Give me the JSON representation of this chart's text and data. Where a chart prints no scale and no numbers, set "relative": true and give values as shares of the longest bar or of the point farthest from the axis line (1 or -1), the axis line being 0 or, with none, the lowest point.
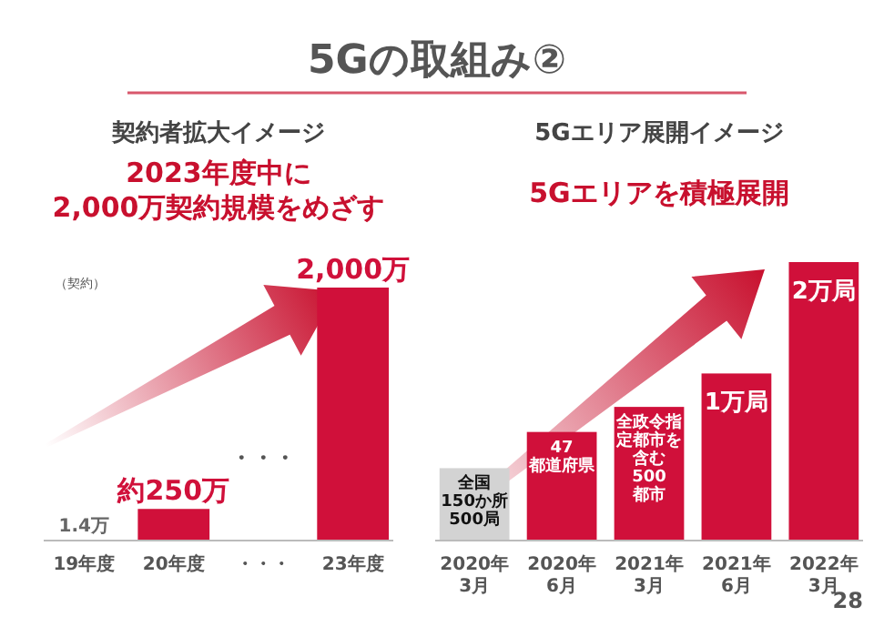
{
  "chart_data": [
    {
      "type": "bar",
      "title": "契約者拡大イメージ",
      "subtitle": "2023年度中に\n2,000万契約規模をめざす",
      "ylabel": "（契約）",
      "categories": [
        "19年度",
        "20年度",
        "・・・",
        "23年度"
      ],
      "values": [
        1.4,
        250,
        null,
        2000
      ],
      "colors": [
        "#9e9e9e",
        "#d0103a",
        "#555555",
        "#d0103a"
      ],
      "value_labels": [
        "1.4万",
        "約250万",
        "・・・",
        "2,000万"
      ],
      "annotations": [
        "5Gの取組み②"
      ]
    },
    {
      "type": "bar",
      "title": "5Gエリア展開イメージ",
      "subtitle": "5Gエリアを積極展開",
      "relative": true,
      "categories": [
        "2020年\n3月",
        "2020年\n6月",
        "2021年\n3月",
        "2021年\n6月",
        "2022年\n3月"
      ],
      "values": [
        0.26,
        0.39,
        0.48,
        0.6,
        1
      ],
      "colors": [
        "#d3d3d3",
        "#d0103a",
        "#d0103a",
        "#d0103a",
        "#d0103a"
      ],
      "annotations": [
        "全国",
        "150か所",
        "500局",
        "47",
        "都道府県",
        "全政令指定都市を含む",
        "500",
        "都市",
        "1万局",
        "2万局",
        "28"
      ]
    }
  ]
}
